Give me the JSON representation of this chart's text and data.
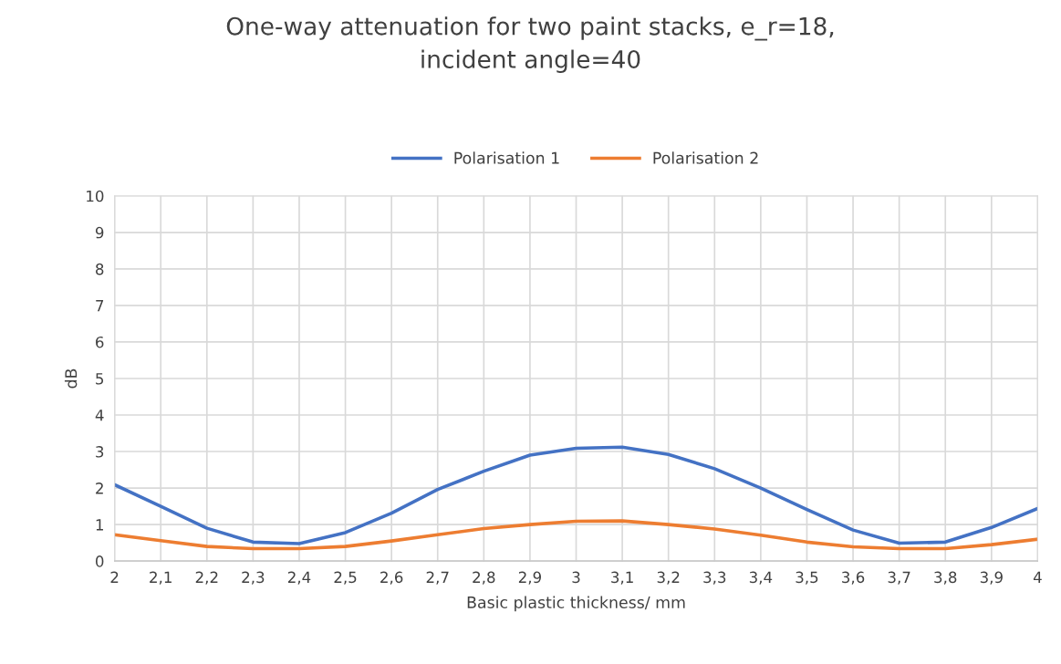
{
  "chart_data": {
    "type": "line",
    "title": "One-way attenuation for two paint stacks, e_r=18,\nincident angle=40",
    "xlabel": "Basic plastic thickness/ mm",
    "ylabel": "dB",
    "categories": [
      "2",
      "2,1",
      "2,2",
      "2,3",
      "2,4",
      "2,5",
      "2,6",
      "2,7",
      "2,8",
      "2,9",
      "3",
      "3,1",
      "3,2",
      "3,3",
      "3,4",
      "3,5",
      "3,6",
      "3,7",
      "3,8",
      "3,9",
      "4"
    ],
    "series": [
      {
        "name": "Polarisation 1",
        "color": "#4472c4",
        "values": [
          2.09,
          1.5,
          0.9,
          0.52,
          0.48,
          0.78,
          1.31,
          1.96,
          2.46,
          2.9,
          3.09,
          3.12,
          2.92,
          2.53,
          2.0,
          1.41,
          0.85,
          0.49,
          0.52,
          0.92,
          1.44
        ]
      },
      {
        "name": "Polarisation 2",
        "color": "#ed7d31",
        "values": [
          0.72,
          0.56,
          0.4,
          0.34,
          0.34,
          0.4,
          0.55,
          0.72,
          0.89,
          1.0,
          1.09,
          1.1,
          1.0,
          0.88,
          0.71,
          0.52,
          0.39,
          0.34,
          0.34,
          0.45,
          0.6
        ]
      }
    ],
    "ylim": [
      0,
      10
    ],
    "yticks": [
      0,
      1,
      2,
      3,
      4,
      5,
      6,
      7,
      8,
      9,
      10
    ],
    "grid": true,
    "legend": "top",
    "marker": "none",
    "line_style": "solid"
  }
}
